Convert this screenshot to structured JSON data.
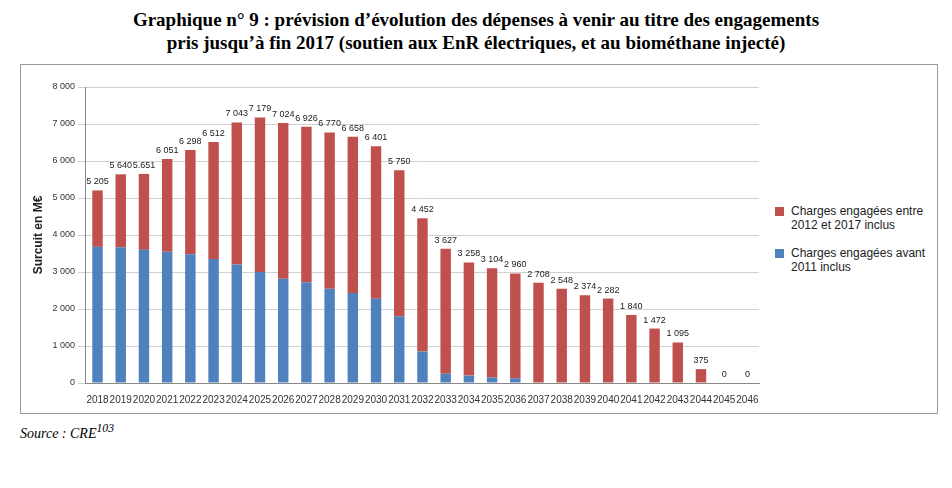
{
  "chart_data": {
    "type": "bar",
    "title": [
      "Graphique n° 9 : prévision d’évolution des dépenses à venir au titre des engagements",
      "pris jusqu’à fin 2017 (soutien aux EnR électriques, et au biométhane injecté)"
    ],
    "y_label": "Surcuit en M€",
    "source": {
      "text": "Source : CRE",
      "superscript": "103"
    },
    "categories": [
      "2018",
      "2019",
      "2020",
      "2021",
      "2022",
      "2023",
      "2024",
      "2025",
      "2026",
      "2027",
      "2028",
      "2029",
      "2030",
      "2031",
      "2032",
      "2033",
      "2034",
      "2035",
      "2036",
      "2037",
      "2038",
      "2039",
      "2040",
      "2041",
      "2042",
      "2043",
      "2044",
      "2045",
      "2046"
    ],
    "series": [
      {
        "name": "Charges engagées avant 2011 inclus",
        "color": "#4f81bd",
        "values": [
          3680,
          3670,
          3600,
          3550,
          3480,
          3350,
          3200,
          3000,
          2820,
          2720,
          2550,
          2430,
          2280,
          1800,
          850,
          250,
          200,
          150,
          130,
          0,
          0,
          0,
          0,
          0,
          0,
          0,
          0,
          0,
          0
        ]
      },
      {
        "name": "Charges engagées entre 2012 et 2017 inclus",
        "color": "#c0504d",
        "values": [
          1525,
          1970,
          2051,
          2501,
          2818,
          3162,
          3843,
          4179,
          4204,
          4206,
          4220,
          4228,
          4121,
          3950,
          3602,
          3377,
          3058,
          2954,
          2830,
          2708,
          2548,
          2374,
          2282,
          1840,
          1472,
          1095,
          375,
          0,
          0
        ]
      }
    ],
    "totals": [
      5205,
      5640,
      5651,
      6051,
      6298,
      6512,
      7043,
      7179,
      7024,
      6926,
      6770,
      6658,
      6401,
      5750,
      4452,
      3627,
      3258,
      3104,
      2960,
      2708,
      2548,
      2374,
      2282,
      1840,
      1472,
      1095,
      375,
      0,
      0
    ],
    "total_labels": [
      "5 205",
      "5 640",
      "5.651",
      "6 051",
      "6 298",
      "6 512",
      "7 043",
      "7 179",
      "7 024",
      "6 926",
      "6 770",
      "6 658",
      "6 401",
      "5 750",
      "4 452",
      "3 627",
      "3 258",
      "3 104",
      "2 960",
      "2 708",
      "2 548",
      "2 374",
      "2 282",
      "1 840",
      "1 472",
      "1 095",
      "375",
      "0",
      "0"
    ],
    "ylim": [
      0,
      8000
    ],
    "yticks": [
      0,
      {
        "value": 1000,
        "label": "1 000"
      },
      {
        "value": 2000,
        "label": "2 000"
      },
      {
        "value": 3000,
        "label": "3 000"
      },
      {
        "value": 4000,
        "label": "4 000"
      },
      {
        "value": 5000,
        "label": "5 000"
      },
      {
        "value": 6000,
        "label": "6 000"
      },
      {
        "value": 7000,
        "label": "7 000"
      },
      {
        "value": 8000,
        "label": "8 000"
      }
    ],
    "stacked": true,
    "grid": true,
    "legend": "right",
    "data_labels": true
  }
}
